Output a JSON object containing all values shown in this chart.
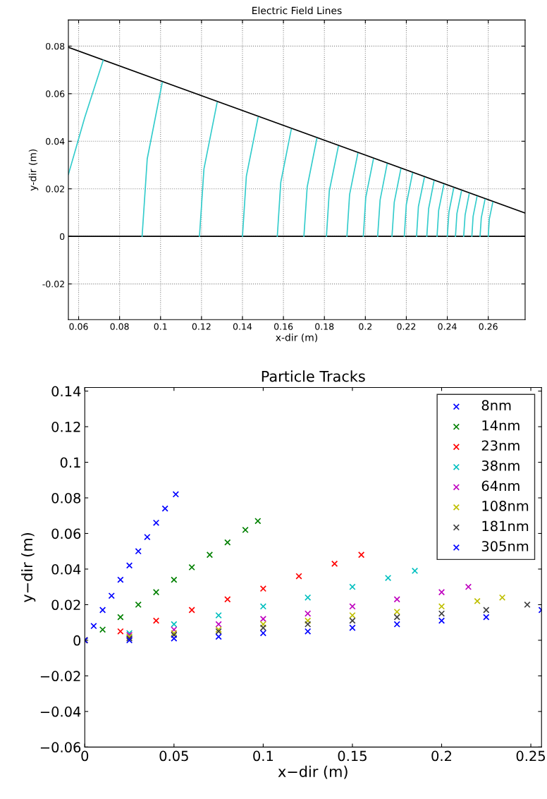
{
  "chart_data": [
    {
      "type": "line",
      "title": "Electric Field Lines",
      "xlabel": "x-dir (m)",
      "ylabel": "y-dir (m)",
      "xlim": [
        0.055,
        0.278
      ],
      "ylim": [
        -0.035,
        0.091
      ],
      "xticks": [
        0.06,
        0.08,
        0.1,
        0.12,
        0.14,
        0.16,
        0.18,
        0.2,
        0.22,
        0.24,
        0.26
      ],
      "yticks": [
        -0.02,
        0,
        0.02,
        0.04,
        0.06,
        0.08
      ],
      "grid": true,
      "line_style": "solid",
      "marker": "none",
      "series": [
        {
          "color": "#000000",
          "x": [
            0.055,
            0.278
          ],
          "values": [
            0.0795,
            0.0098
          ]
        },
        {
          "color": "#000000",
          "x": [
            0.055,
            0.278
          ],
          "values": [
            0,
            0
          ]
        },
        {
          "color": "#33cccc",
          "x": [
            0.055,
            0.063,
            0.072
          ],
          "values": [
            0.026,
            0.05,
            0.074
          ]
        },
        {
          "color": "#33cccc",
          "x": [
            0.091,
            0.0935,
            0.1008
          ],
          "values": [
            0,
            0.0326,
            0.0646
          ]
        },
        {
          "color": "#33cccc",
          "x": [
            0.119,
            0.1212,
            0.1276
          ],
          "values": [
            0,
            0.0284,
            0.0562
          ]
        },
        {
          "color": "#33cccc",
          "x": [
            0.14,
            0.1419,
            0.1476
          ],
          "values": [
            0,
            0.0253,
            0.05
          ]
        },
        {
          "color": "#33cccc",
          "x": [
            0.157,
            0.1587,
            0.1638
          ],
          "values": [
            0,
            0.0227,
            0.0449
          ]
        },
        {
          "color": "#33cccc",
          "x": [
            0.17,
            0.1716,
            0.1763
          ],
          "values": [
            0,
            0.0208,
            0.0411
          ]
        },
        {
          "color": "#33cccc",
          "x": [
            0.181,
            0.1824,
            0.1868
          ],
          "values": [
            0,
            0.0191,
            0.0378
          ]
        },
        {
          "color": "#33cccc",
          "x": [
            0.191,
            0.1923,
            0.1963
          ],
          "values": [
            0,
            0.0176,
            0.0348
          ]
        },
        {
          "color": "#33cccc",
          "x": [
            0.199,
            0.2002,
            0.2039
          ],
          "values": [
            0,
            0.0164,
            0.0324
          ]
        },
        {
          "color": "#33cccc",
          "x": [
            0.206,
            0.2072,
            0.2106
          ],
          "values": [
            0,
            0.0153,
            0.0304
          ]
        },
        {
          "color": "#33cccc",
          "x": [
            0.213,
            0.2141,
            0.2173
          ],
          "values": [
            0,
            0.0143,
            0.0283
          ]
        },
        {
          "color": "#33cccc",
          "x": [
            0.219,
            0.22,
            0.223
          ],
          "values": [
            0,
            0.0134,
            0.0265
          ]
        },
        {
          "color": "#33cccc",
          "x": [
            0.225,
            0.2259,
            0.2288
          ],
          "values": [
            0,
            0.0125,
            0.0247
          ]
        },
        {
          "color": "#33cccc",
          "x": [
            0.23,
            0.2309,
            0.2335
          ],
          "values": [
            0,
            0.0117,
            0.0232
          ]
        },
        {
          "color": "#33cccc",
          "x": [
            0.235,
            0.2358,
            0.2383
          ],
          "values": [
            0,
            0.011,
            0.0217
          ]
        },
        {
          "color": "#33cccc",
          "x": [
            0.24,
            0.2408,
            0.2431
          ],
          "values": [
            0,
            0.0102,
            0.0202
          ]
        },
        {
          "color": "#33cccc",
          "x": [
            0.244,
            0.2447,
            0.2469
          ],
          "values": [
            0,
            0.0096,
            0.019
          ]
        },
        {
          "color": "#33cccc",
          "x": [
            0.248,
            0.2487,
            0.2507
          ],
          "values": [
            0,
            0.009,
            0.0179
          ]
        },
        {
          "color": "#33cccc",
          "x": [
            0.252,
            0.2526,
            0.2545
          ],
          "values": [
            0,
            0.0084,
            0.0167
          ]
        },
        {
          "color": "#33cccc",
          "x": [
            0.256,
            0.2566,
            0.2584
          ],
          "values": [
            0,
            0.0078,
            0.0155
          ]
        },
        {
          "color": "#33cccc",
          "x": [
            0.26,
            0.2605,
            0.2622
          ],
          "values": [
            0,
            0.0072,
            0.0143
          ]
        }
      ]
    },
    {
      "type": "scatter",
      "title": "Particle Tracks",
      "xlabel": "x−dir (m)",
      "ylabel": "y−dir (m)",
      "xlim": [
        0,
        0.256
      ],
      "ylim": [
        -0.06,
        0.142
      ],
      "xticks": [
        0,
        0.05,
        0.1,
        0.15,
        0.2,
        0.25
      ],
      "yticks": [
        {
          "value": -0.06,
          "label": "−0.06"
        },
        {
          "value": -0.04,
          "label": "−0.04"
        },
        {
          "value": -0.02,
          "label": "−0.02"
        },
        0,
        0.02,
        0.04,
        0.06,
        0.08,
        0.1,
        0.12,
        0.14
      ],
      "grid": false,
      "legend": "top right",
      "marker": "cross",
      "series": [
        {
          "name": "8nm",
          "color": "#0000ff",
          "x": [
            0,
            0.005,
            0.01,
            0.015,
            0.02,
            0.025,
            0.03,
            0.035,
            0.04,
            0.045,
            0.051
          ],
          "values": [
            0,
            0.008,
            0.017,
            0.025,
            0.034,
            0.042,
            0.05,
            0.058,
            0.066,
            0.074,
            0.082
          ]
        },
        {
          "name": "14nm",
          "color": "#008000",
          "x": [
            0,
            0.01,
            0.02,
            0.03,
            0.04,
            0.05,
            0.06,
            0.07,
            0.08,
            0.09,
            0.097
          ],
          "values": [
            0,
            0.006,
            0.013,
            0.02,
            0.027,
            0.034,
            0.041,
            0.048,
            0.055,
            0.062,
            0.067
          ]
        },
        {
          "name": "23nm",
          "color": "#ff0000",
          "x": [
            0,
            0.02,
            0.04,
            0.06,
            0.08,
            0.1,
            0.12,
            0.14,
            0.155
          ],
          "values": [
            0,
            0.005,
            0.011,
            0.017,
            0.023,
            0.029,
            0.036,
            0.043,
            0.048
          ]
        },
        {
          "name": "38nm",
          "color": "#00bfbf",
          "x": [
            0,
            0.025,
            0.05,
            0.075,
            0.1,
            0.125,
            0.15,
            0.17,
            0.185
          ],
          "values": [
            0,
            0.004,
            0.009,
            0.014,
            0.019,
            0.024,
            0.03,
            0.035,
            0.039
          ]
        },
        {
          "name": "64nm",
          "color": "#bf00bf",
          "x": [
            0,
            0.025,
            0.05,
            0.075,
            0.1,
            0.125,
            0.15,
            0.175,
            0.2,
            0.215
          ],
          "values": [
            0,
            0.003,
            0.006,
            0.009,
            0.012,
            0.015,
            0.019,
            0.023,
            0.027,
            0.03
          ]
        },
        {
          "name": "108nm",
          "color": "#bfbf00",
          "x": [
            0,
            0.025,
            0.05,
            0.075,
            0.1,
            0.125,
            0.15,
            0.175,
            0.2,
            0.22,
            0.234
          ],
          "values": [
            0,
            0.002,
            0.004,
            0.006,
            0.009,
            0.011,
            0.014,
            0.016,
            0.019,
            0.022,
            0.024
          ]
        },
        {
          "name": "181nm",
          "color": "#404040",
          "x": [
            0,
            0.025,
            0.05,
            0.075,
            0.1,
            0.125,
            0.15,
            0.175,
            0.2,
            0.225,
            0.248
          ],
          "values": [
            0,
            0.001,
            0.003,
            0.005,
            0.007,
            0.009,
            0.011,
            0.013,
            0.015,
            0.017,
            0.02
          ]
        },
        {
          "name": "305nm",
          "color": "#0000ff",
          "x": [
            0,
            0.025,
            0.05,
            0.075,
            0.1,
            0.125,
            0.15,
            0.175,
            0.2,
            0.225,
            0.256
          ],
          "values": [
            0,
            0.0,
            0.001,
            0.002,
            0.004,
            0.005,
            0.007,
            0.009,
            0.011,
            0.013,
            0.017
          ]
        }
      ]
    }
  ]
}
